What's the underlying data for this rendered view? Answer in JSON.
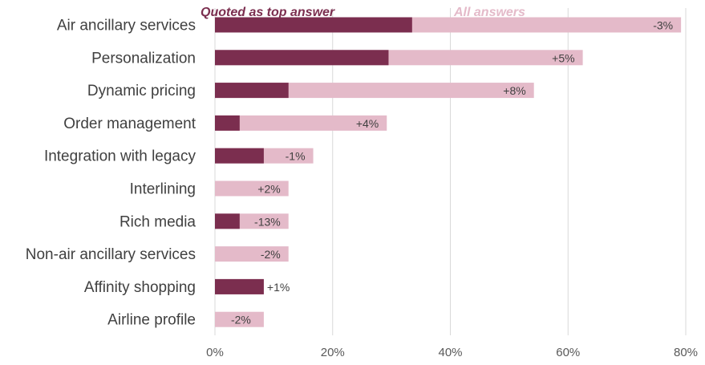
{
  "chart_data": {
    "type": "bar",
    "orientation": "horizontal",
    "categories": [
      "Air ancillary services",
      "Personalization",
      "Dynamic pricing",
      "Order management",
      "Integration with legacy",
      "Interlining",
      "Rich media",
      "Non-air ancillary services",
      "Affinity shopping",
      "Airline profile"
    ],
    "series": [
      {
        "name": "Quoted as top answer",
        "color": "#7b2e4f",
        "values": [
          33.5,
          29.5,
          12.5,
          4.2,
          8.3,
          0,
          4.2,
          0,
          8.3,
          0
        ]
      },
      {
        "name": "All answers",
        "color": "#e4bac9",
        "values": [
          79.2,
          62.5,
          54.2,
          29.2,
          16.7,
          12.5,
          12.5,
          12.5,
          8.3,
          8.3
        ]
      }
    ],
    "data_labels": [
      "-3%",
      "+5%",
      "+8%",
      "+4%",
      "-1%",
      "+2%",
      "-13%",
      "-2%",
      "+1%",
      "-2%"
    ],
    "xlim": [
      0,
      80
    ],
    "xticks": [
      0,
      20,
      40,
      60,
      80
    ],
    "xtick_labels": [
      "0%",
      "20%",
      "40%",
      "60%",
      "80%"
    ],
    "xlabel": "",
    "ylabel": "",
    "title": "",
    "grid": "vertical",
    "gridline_color": "#d9d9d9",
    "legend_placement": "top",
    "label_color": "#404040",
    "tick_color": "#595959"
  }
}
